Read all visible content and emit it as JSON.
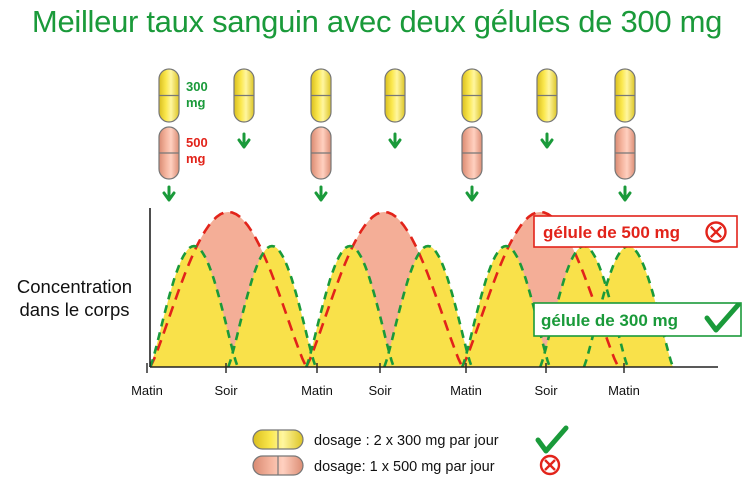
{
  "title": "Meilleur taux sanguin avec deux gélules de 300 mg",
  "ylabel_lines": [
    "Concentration",
    "dans le corps"
  ],
  "colors": {
    "title_green": "#1a9a3a",
    "capsule_yellow": "#f5de3a",
    "capsule_salmon": "#f3a98f",
    "fill_yellow": "#f9e14a",
    "fill_salmon": "#f4ae97",
    "red_dash": "#e2231a",
    "green_dash": "#1a9a3a"
  },
  "dose_labels": {
    "d300": [
      "300",
      "mg"
    ],
    "d500": [
      "500",
      "mg"
    ]
  },
  "chart_data": {
    "type": "area",
    "x_ticks": [
      "Matin",
      "Soir",
      "Matin",
      "Soir",
      "Matin",
      "Soir",
      "Matin"
    ],
    "x_tick_positions": [
      0,
      0.5,
      1,
      1.5,
      2,
      2.5,
      3
    ],
    "series": [
      {
        "name": "gélule de 500 mg",
        "peak_level": 1.0,
        "dose_times": [
          0,
          1,
          2
        ],
        "peak_offset": 0.25,
        "width": 1.0
      },
      {
        "name": "gélule de 300 mg",
        "peak_level": 0.78,
        "dose_times": [
          0,
          0.5,
          1,
          1.5,
          2,
          2.5,
          3
        ],
        "peak_offset": 0.25,
        "width": 0.5
      }
    ],
    "annotations": [
      {
        "text": "gélule de 500 mg",
        "status": "bad"
      },
      {
        "text": "gélule de 300 mg",
        "status": "good"
      }
    ],
    "legend": [
      {
        "text": "dosage : 2 x 300 mg par jour",
        "status": "good"
      },
      {
        "text": "dosage: 1 x 500 mg par jour",
        "status": "bad"
      }
    ]
  }
}
